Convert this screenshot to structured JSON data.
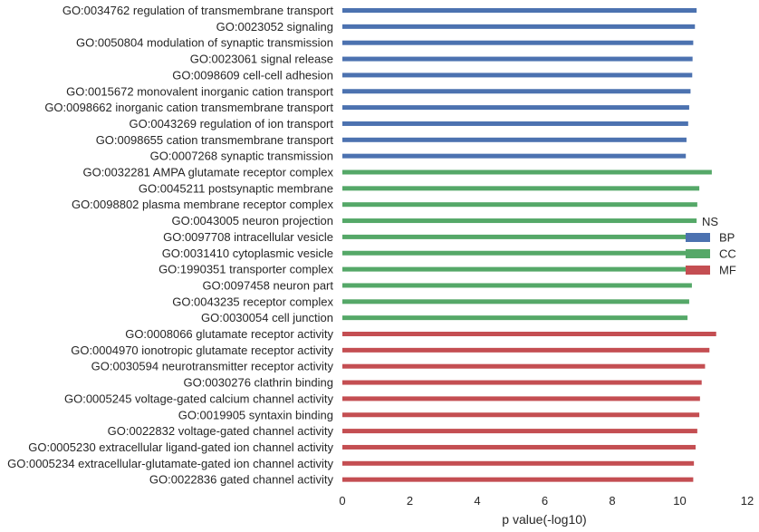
{
  "chart_data": {
    "type": "bar",
    "orientation": "horizontal",
    "title": "",
    "xlabel": "p value(-log10)",
    "ylabel": "",
    "xlim": [
      0,
      12
    ],
    "xticks": [
      0,
      2,
      4,
      6,
      8,
      10,
      12
    ],
    "grid": false,
    "legend": {
      "title": "NS",
      "placement": "right",
      "entries": [
        {
          "name": "BP",
          "color": "#4c72b0"
        },
        {
          "name": "CC",
          "color": "#55a868"
        },
        {
          "name": "MF",
          "color": "#c44e52"
        }
      ]
    },
    "bars": [
      {
        "label": "GO:0034762 regulation of transmembrane transport",
        "value": 10.5,
        "group": "BP"
      },
      {
        "label": "GO:0023052 signaling",
        "value": 10.45,
        "group": "BP"
      },
      {
        "label": "GO:0050804 modulation of synaptic transmission",
        "value": 10.4,
        "group": "BP"
      },
      {
        "label": "GO:0023061 signal release",
        "value": 10.38,
        "group": "BP"
      },
      {
        "label": "GO:0098609 cell-cell adhesion",
        "value": 10.37,
        "group": "BP"
      },
      {
        "label": "GO:0015672 monovalent inorganic cation transport",
        "value": 10.32,
        "group": "BP"
      },
      {
        "label": "GO:0098662 inorganic cation transmembrane transport",
        "value": 10.28,
        "group": "BP"
      },
      {
        "label": "GO:0043269 regulation of ion transport",
        "value": 10.25,
        "group": "BP"
      },
      {
        "label": "GO:0098655 cation transmembrane transport",
        "value": 10.2,
        "group": "BP"
      },
      {
        "label": "GO:0007268 synaptic transmission",
        "value": 10.18,
        "group": "BP"
      },
      {
        "label": "GO:0032281 AMPA glutamate receptor complex",
        "value": 10.95,
        "group": "CC"
      },
      {
        "label": "GO:0045211 postsynaptic membrane",
        "value": 10.58,
        "group": "CC"
      },
      {
        "label": "GO:0098802 plasma membrane receptor complex",
        "value": 10.52,
        "group": "CC"
      },
      {
        "label": "GO:0043005 neuron projection",
        "value": 10.5,
        "group": "CC"
      },
      {
        "label": "GO:0097708 intracellular vesicle",
        "value": 10.43,
        "group": "CC"
      },
      {
        "label": "GO:0031410 cytoplasmic vesicle",
        "value": 10.4,
        "group": "CC"
      },
      {
        "label": "GO:1990351 transporter complex",
        "value": 10.38,
        "group": "CC"
      },
      {
        "label": "GO:0097458 neuron part",
        "value": 10.36,
        "group": "CC"
      },
      {
        "label": "GO:0043235 receptor complex",
        "value": 10.28,
        "group": "CC"
      },
      {
        "label": "GO:0030054 cell junction",
        "value": 10.23,
        "group": "CC"
      },
      {
        "label": "GO:0008066 glutamate receptor activity",
        "value": 11.08,
        "group": "MF"
      },
      {
        "label": "GO:0004970 ionotropic glutamate receptor activity",
        "value": 10.88,
        "group": "MF"
      },
      {
        "label": "GO:0030594 neurotransmitter receptor activity",
        "value": 10.75,
        "group": "MF"
      },
      {
        "label": "GO:0030276 clathrin binding",
        "value": 10.65,
        "group": "MF"
      },
      {
        "label": "GO:0005245 voltage-gated calcium channel activity",
        "value": 10.6,
        "group": "MF"
      },
      {
        "label": "GO:0019905 syntaxin binding",
        "value": 10.58,
        "group": "MF"
      },
      {
        "label": "GO:0022832 voltage-gated channel activity",
        "value": 10.52,
        "group": "MF"
      },
      {
        "label": "GO:0005230 extracellular ligand-gated ion channel activity",
        "value": 10.47,
        "group": "MF"
      },
      {
        "label": "GO:0005234 extracellular-glutamate-gated ion channel activity",
        "value": 10.42,
        "group": "MF"
      },
      {
        "label": "GO:0022836 gated channel activity",
        "value": 10.4,
        "group": "MF"
      }
    ]
  }
}
